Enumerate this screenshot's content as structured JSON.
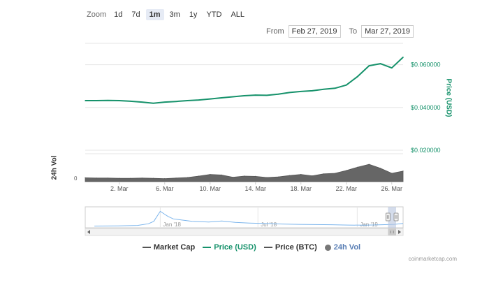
{
  "range_selector": {
    "zoom_label": "Zoom",
    "buttons": [
      "1d",
      "7d",
      "1m",
      "3m",
      "1y",
      "YTD",
      "ALL"
    ],
    "selected": "1m",
    "from_label": "From",
    "from_value": "Feb 27, 2019",
    "to_label": "To",
    "to_value": "Mar 27, 2019"
  },
  "legend": {
    "items": [
      {
        "label": "Market Cap",
        "color": "#555555",
        "marker": "line"
      },
      {
        "label": "Price (USD)",
        "color": "#16926b",
        "marker": "line"
      },
      {
        "label": "Price (BTC)",
        "color": "#555555",
        "marker": "line"
      },
      {
        "label": "24h Vol",
        "color": "#777777",
        "marker": "circle"
      }
    ]
  },
  "credits": "coinmarketcap.com",
  "colors": {
    "price_usd": "#16926b",
    "volume": "#666666",
    "navigator_line": "#7cb5ec",
    "navigator_mask": "#b8c4dd"
  },
  "chart_data": [
    {
      "type": "line",
      "title": "",
      "ylabel": "Price (USD)",
      "ylim": [
        0.02,
        0.07
      ],
      "yticks": [
        "$0.020000",
        "$0.040000",
        "$0.060000"
      ],
      "xlim": [
        "2019-02-27",
        "2019-03-27"
      ],
      "series": [
        {
          "name": "Price (USD)",
          "x": [
            "2019-02-27",
            "2019-02-28",
            "2019-03-01",
            "2019-03-02",
            "2019-03-03",
            "2019-03-04",
            "2019-03-05",
            "2019-03-06",
            "2019-03-07",
            "2019-03-08",
            "2019-03-09",
            "2019-03-10",
            "2019-03-11",
            "2019-03-12",
            "2019-03-13",
            "2019-03-14",
            "2019-03-15",
            "2019-03-16",
            "2019-03-17",
            "2019-03-18",
            "2019-03-19",
            "2019-03-20",
            "2019-03-21",
            "2019-03-22",
            "2019-03-23",
            "2019-03-24",
            "2019-03-25",
            "2019-03-26",
            "2019-03-27"
          ],
          "values": [
            0.0432,
            0.0432,
            0.0433,
            0.0432,
            0.0429,
            0.0425,
            0.042,
            0.0425,
            0.0428,
            0.0432,
            0.0435,
            0.044,
            0.0445,
            0.045,
            0.0455,
            0.0458,
            0.0457,
            0.0462,
            0.047,
            0.0475,
            0.0478,
            0.0485,
            0.049,
            0.0505,
            0.0545,
            0.0595,
            0.0605,
            0.0585,
            0.0635
          ]
        }
      ]
    },
    {
      "type": "area",
      "title": "",
      "ylabel": "24h Vol",
      "yticks": [
        "0"
      ],
      "categories": [
        "2. Mar",
        "6. Mar",
        "10. Mar",
        "14. Mar",
        "18. Mar",
        "22. Mar",
        "26. Mar"
      ],
      "series": [
        {
          "name": "24h Vol",
          "x": [
            "2019-02-27",
            "2019-02-28",
            "2019-03-01",
            "2019-03-02",
            "2019-03-03",
            "2019-03-04",
            "2019-03-05",
            "2019-03-06",
            "2019-03-07",
            "2019-03-08",
            "2019-03-09",
            "2019-03-10",
            "2019-03-11",
            "2019-03-12",
            "2019-03-13",
            "2019-03-14",
            "2019-03-15",
            "2019-03-16",
            "2019-03-17",
            "2019-03-18",
            "2019-03-19",
            "2019-03-20",
            "2019-03-21",
            "2019-03-22",
            "2019-03-23",
            "2019-03-24",
            "2019-03-25",
            "2019-03-26",
            "2019-03-27"
          ],
          "values": [
            0.14,
            0.13,
            0.13,
            0.12,
            0.12,
            0.13,
            0.12,
            0.11,
            0.13,
            0.15,
            0.2,
            0.26,
            0.24,
            0.16,
            0.2,
            0.19,
            0.15,
            0.17,
            0.22,
            0.26,
            0.21,
            0.28,
            0.3,
            0.4,
            0.52,
            0.62,
            0.48,
            0.3,
            0.38
          ]
        }
      ]
    },
    {
      "type": "line",
      "title": "",
      "xticks": [
        "Jan '18",
        "Jul '18",
        "Jan '19"
      ],
      "series": [
        {
          "name": "Navigator",
          "x": [
            "2017-09-01",
            "2017-10-15",
            "2017-11-20",
            "2017-12-10",
            "2017-12-20",
            "2018-01-01",
            "2018-01-08",
            "2018-01-15",
            "2018-01-25",
            "2018-02-10",
            "2018-03-01",
            "2018-04-01",
            "2018-04-25",
            "2018-05-20",
            "2018-06-15",
            "2018-07-15",
            "2018-08-15",
            "2018-09-15",
            "2018-10-15",
            "2018-11-15",
            "2018-12-15",
            "2019-01-15",
            "2019-02-15",
            "2019-03-10",
            "2019-03-27"
          ],
          "values": [
            0.02,
            0.03,
            0.06,
            0.16,
            0.3,
            0.9,
            0.75,
            0.6,
            0.45,
            0.38,
            0.3,
            0.26,
            0.32,
            0.24,
            0.2,
            0.17,
            0.14,
            0.12,
            0.11,
            0.1,
            0.08,
            0.07,
            0.1,
            0.12,
            0.18
          ]
        }
      ]
    }
  ]
}
